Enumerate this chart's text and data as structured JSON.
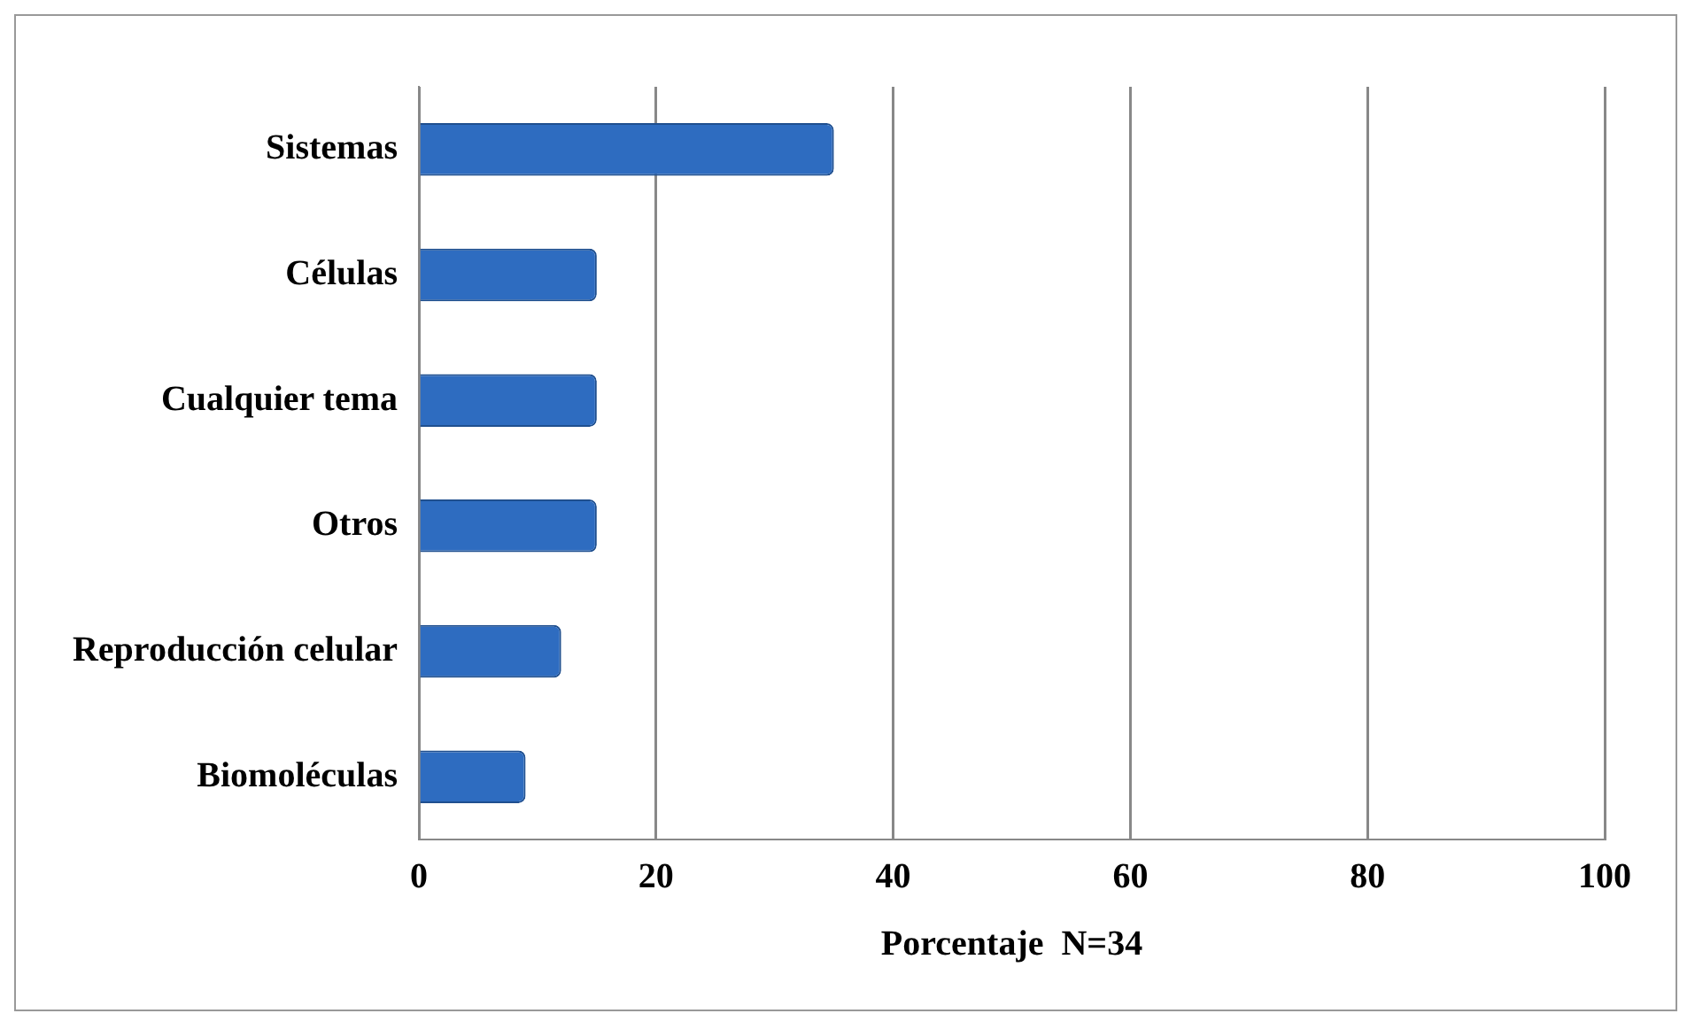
{
  "chart_data": {
    "type": "bar",
    "orientation": "horizontal",
    "xlabel": "Porcentaje  N=34",
    "categories": [
      "Sistemas",
      "Células",
      "Cualquier tema",
      "Otros",
      "Reproducción celular",
      "Biomoléculas"
    ],
    "values": [
      35,
      15,
      15,
      15,
      12,
      9
    ],
    "color": "#2e6cc0",
    "xlim": [
      0,
      100
    ],
    "xticks": [
      0,
      20,
      40,
      60,
      80,
      100
    ],
    "grid": "x"
  }
}
